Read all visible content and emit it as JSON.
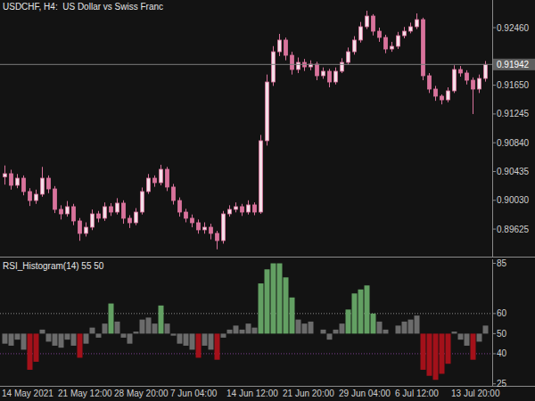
{
  "chart_data": [
    {
      "type": "candlestick",
      "title": "USDCHF, H4:  US Dollar vs Swiss Franc",
      "color": "#d9739c",
      "open": [
        0.9036,
        0.90404,
        0.90241,
        0.90341,
        0.90153,
        0.90027,
        0.90115,
        0.90341,
        0.9019,
        0.89902,
        0.89839,
        0.8994,
        0.89739,
        0.89564,
        0.89651,
        0.89839,
        0.89777,
        0.8994,
        0.89864,
        0.8999,
        0.89777,
        0.89714,
        0.89864,
        0.90153,
        0.90341,
        0.90278,
        0.90466,
        0.90216,
        0.90027,
        0.89864,
        0.89777,
        0.89714,
        0.89614,
        0.89651,
        0.89564,
        0.89463,
        0.89839,
        0.89902,
        0.8994,
        0.89864,
        0.89965,
        0.89864,
        0.90868,
        0.91695,
        0.92121,
        0.92285,
        0.92071,
        0.91871,
        0.91971,
        0.91908,
        0.91946,
        0.91783,
        0.91846,
        0.91695,
        0.91846,
        0.91971,
        0.92121,
        0.92285,
        0.92473,
        0.92623,
        0.9241,
        0.92322,
        0.92159,
        0.92197,
        0.92347,
        0.9241,
        0.92473,
        0.92573,
        0.91783,
        0.91595,
        0.91495,
        0.91444,
        0.9157,
        0.91871,
        0.91821,
        0.9172,
        0.91595,
        0.91745
      ],
      "high": [
        0.9052,
        0.9046,
        0.904,
        0.9038,
        0.902,
        0.9018,
        0.905,
        0.9038,
        0.9023,
        0.8996,
        0.9002,
        0.8998,
        0.8978,
        0.8972,
        0.899,
        0.8988,
        0.9,
        0.8999,
        0.9006,
        0.9003,
        0.8982,
        0.8992,
        0.9021,
        0.904,
        0.9038,
        0.9053,
        0.905,
        0.9026,
        0.9007,
        0.8991,
        0.8983,
        0.8976,
        0.8972,
        0.897,
        0.896,
        0.8988,
        0.8996,
        0.9,
        0.8998,
        0.9003,
        0.9,
        0.9095,
        0.918,
        0.922,
        0.92372,
        0.9232,
        0.9212,
        0.9204,
        0.9202,
        0.92,
        0.9198,
        0.919,
        0.9188,
        0.919,
        0.9203,
        0.9218,
        0.9234,
        0.9254,
        0.92698,
        0.9265,
        0.9246,
        0.9236,
        0.9226,
        0.924,
        0.9247,
        0.9253,
        0.9266,
        0.926,
        0.9182,
        0.9164,
        0.9152,
        0.9162,
        0.9193,
        0.9192,
        0.9186,
        0.9176,
        0.918,
        0.9199
      ],
      "low": [
        0.9025,
        0.9018,
        0.902,
        0.901,
        0.8995,
        0.8998,
        0.9008,
        0.9013,
        0.8985,
        0.8976,
        0.898,
        0.8968,
        0.8946,
        0.8952,
        0.8961,
        0.8972,
        0.8974,
        0.8981,
        0.8983,
        0.897,
        0.8964,
        0.8968,
        0.8983,
        0.9012,
        0.9022,
        0.9024,
        0.9016,
        0.8997,
        0.898,
        0.8972,
        0.8965,
        0.8956,
        0.8956,
        0.8948,
        0.8934,
        0.8942,
        0.898,
        0.8986,
        0.8981,
        0.8983,
        0.8982,
        0.8984,
        0.908,
        0.9164,
        0.9206,
        0.92,
        0.918,
        0.9182,
        0.9185,
        0.9186,
        0.9172,
        0.9174,
        0.9162,
        0.9166,
        0.9182,
        0.9194,
        0.9208,
        0.9225,
        0.9244,
        0.9235,
        0.9226,
        0.921,
        0.9212,
        0.9216,
        0.9231,
        0.9238,
        0.9244,
        0.9172,
        0.9154,
        0.9143,
        0.9138,
        0.9141,
        0.9154,
        0.9177,
        0.9166,
        0.91244,
        0.9154,
        0.917
      ],
      "close": [
        0.90404,
        0.90241,
        0.90341,
        0.90153,
        0.90027,
        0.90115,
        0.90341,
        0.9019,
        0.89902,
        0.89839,
        0.8994,
        0.89739,
        0.89564,
        0.89651,
        0.89839,
        0.89777,
        0.8994,
        0.89864,
        0.8999,
        0.89777,
        0.89714,
        0.89864,
        0.90153,
        0.90341,
        0.90278,
        0.90466,
        0.90216,
        0.90027,
        0.89864,
        0.89777,
        0.89714,
        0.89614,
        0.89651,
        0.89564,
        0.89463,
        0.89839,
        0.89902,
        0.8994,
        0.89864,
        0.89965,
        0.89864,
        0.90868,
        0.91695,
        0.92121,
        0.92285,
        0.92071,
        0.91871,
        0.91971,
        0.91908,
        0.91946,
        0.91783,
        0.91846,
        0.91695,
        0.91846,
        0.91971,
        0.92121,
        0.92285,
        0.92473,
        0.92623,
        0.9241,
        0.92322,
        0.92159,
        0.92197,
        0.92347,
        0.9241,
        0.92473,
        0.92573,
        0.91783,
        0.91595,
        0.91495,
        0.91444,
        0.9157,
        0.91871,
        0.91821,
        0.9172,
        0.91595,
        0.91745,
        0.91942
      ],
      "current_price": 0.91942,
      "ylim": [
        0.89237,
        0.92849
      ],
      "yticks": [
        {
          "value": 0.89625,
          "label": "0.89625"
        },
        {
          "value": 0.9003,
          "label": "0.90030"
        },
        {
          "value": 0.90435,
          "label": "0.90435"
        },
        {
          "value": 0.9084,
          "label": "0.90840"
        },
        {
          "value": 0.91245,
          "label": "0.91245"
        },
        {
          "value": 0.9165,
          "label": "0.91650"
        },
        {
          "value": 0.9246,
          "label": "0.92460"
        }
      ]
    },
    {
      "type": "bar",
      "title": "RSI_Histogram(14) 55 50",
      "categories": [
        "14 May 2021",
        null,
        null,
        null,
        null,
        null,
        null,
        null,
        null,
        "21 May 12:00",
        null,
        null,
        null,
        null,
        null,
        null,
        null,
        null,
        "28 May 20:00",
        null,
        null,
        null,
        null,
        null,
        null,
        null,
        null,
        "7 Jun 04:00",
        null,
        null,
        null,
        null,
        null,
        null,
        null,
        null,
        "14 Jun 12:00",
        null,
        null,
        null,
        null,
        null,
        null,
        null,
        null,
        "21 Jun 20:00",
        null,
        null,
        null,
        null,
        null,
        null,
        null,
        null,
        "29 Jun 04:00",
        null,
        null,
        null,
        null,
        null,
        null,
        null,
        null,
        "6 Jul 12:00",
        null,
        null,
        null,
        null,
        null,
        null,
        null,
        null,
        "13 Jul 20:00",
        null,
        null,
        null,
        null,
        null
      ],
      "values": [
        45,
        44,
        47,
        42,
        32,
        36,
        52,
        46,
        44,
        43,
        47,
        44,
        38,
        45,
        53,
        48,
        55,
        65,
        56,
        48,
        45,
        51,
        57,
        58,
        55,
        64,
        55,
        49,
        45,
        44,
        42,
        38,
        44,
        42,
        37,
        48,
        52,
        54,
        52,
        55,
        53,
        75,
        82,
        85,
        85,
        78,
        68,
        57,
        55,
        56,
        50,
        52,
        47,
        52,
        55,
        62,
        70,
        72,
        74,
        60,
        56,
        52,
        50,
        54,
        56,
        57,
        59,
        32,
        29,
        27,
        30,
        35,
        51,
        47,
        44,
        37,
        46,
        54
      ],
      "colors": [
        "#6b6b6b",
        "#6b6b6b",
        "#6b6b6b",
        "#6b6b6b",
        "#a3111a",
        "#a3111a",
        "#6b6b6b",
        "#6b6b6b",
        "#6b6b6b",
        "#6b6b6b",
        "#6b6b6b",
        "#6b6b6b",
        "#a3111a",
        "#6b6b6b",
        "#6b6b6b",
        "#6b6b6b",
        "#6b6b6b",
        "#63a063",
        "#6b6b6b",
        "#6b6b6b",
        "#6b6b6b",
        "#6b6b6b",
        "#6b6b6b",
        "#6b6b6b",
        "#6b6b6b",
        "#63a063",
        "#6b6b6b",
        "#6b6b6b",
        "#6b6b6b",
        "#6b6b6b",
        "#6b6b6b",
        "#a3111a",
        "#6b6b6b",
        "#6b6b6b",
        "#a3111a",
        "#6b6b6b",
        "#6b6b6b",
        "#6b6b6b",
        "#6b6b6b",
        "#6b6b6b",
        "#6b6b6b",
        "#63a063",
        "#63a063",
        "#63a063",
        "#63a063",
        "#63a063",
        "#63a063",
        "#6b6b6b",
        "#6b6b6b",
        "#6b6b6b",
        "#6b6b6b",
        "#6b6b6b",
        "#6b6b6b",
        "#6b6b6b",
        "#6b6b6b",
        "#63a063",
        "#63a063",
        "#63a063",
        "#63a063",
        "#63a063",
        "#6b6b6b",
        "#6b6b6b",
        "#6b6b6b",
        "#6b6b6b",
        "#6b6b6b",
        "#6b6b6b",
        "#6b6b6b",
        "#a3111a",
        "#a3111a",
        "#a3111a",
        "#a3111a",
        "#a3111a",
        "#6b6b6b",
        "#6b6b6b",
        "#6b6b6b",
        "#a3111a",
        "#6b6b6b",
        "#6b6b6b"
      ],
      "baseline": 50,
      "levels": [
        60,
        40
      ],
      "ylim": [
        24,
        87
      ],
      "yticks": [
        25,
        40,
        50,
        60,
        85
      ]
    }
  ]
}
